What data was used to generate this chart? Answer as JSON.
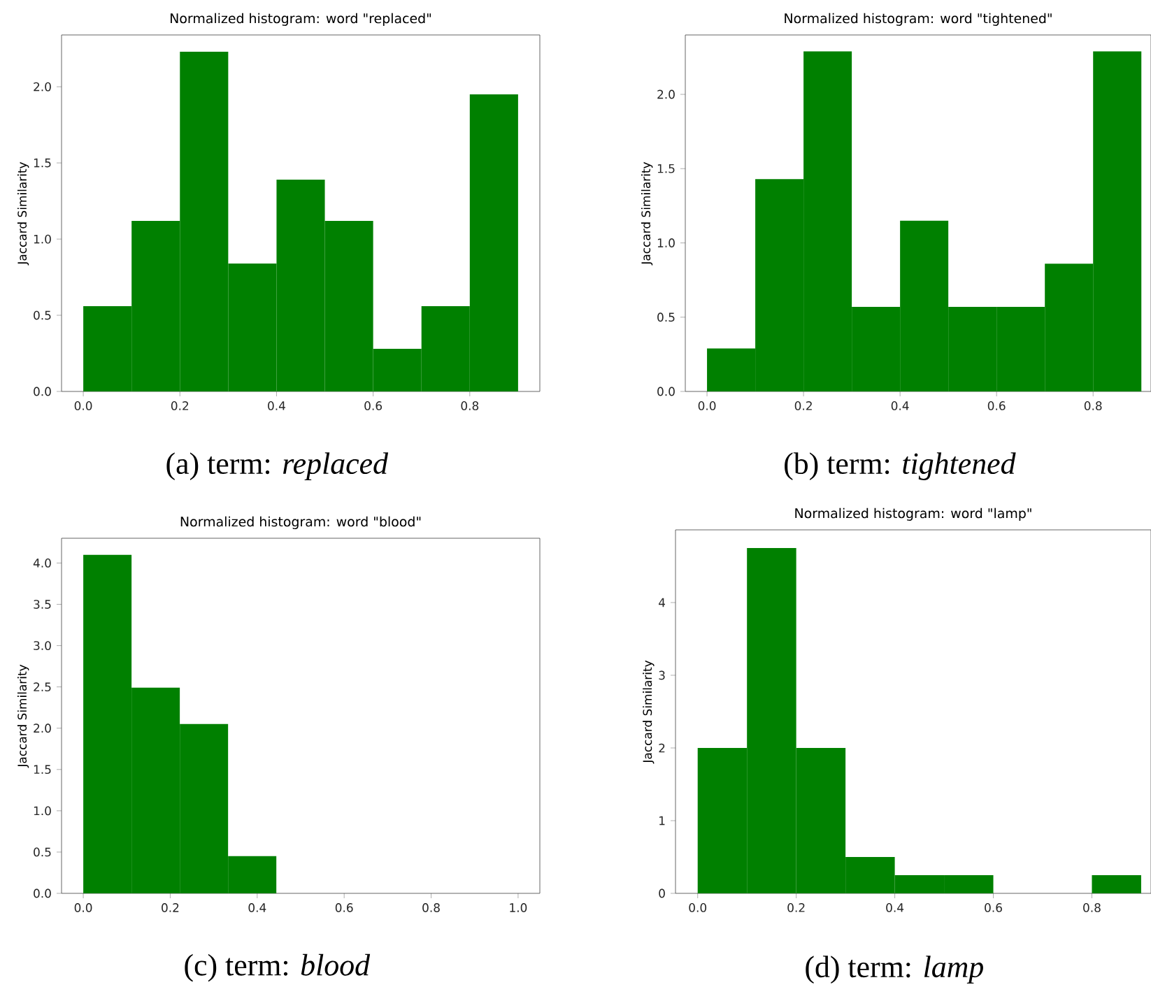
{
  "chart_data": [
    {
      "type": "histogram",
      "title": "Normalized histogram: word \"replaced\"",
      "ylabel": "Jaccard Similarity",
      "color": "#008000",
      "bins": [
        0,
        0.1,
        0.2,
        0.3,
        0.4,
        0.5,
        0.6,
        0.7,
        0.8,
        0.9
      ],
      "values": [
        0.56,
        1.12,
        2.23,
        0.84,
        1.39,
        1.12,
        0.28,
        0.56,
        1.95
      ],
      "xlim": [
        -0.045,
        0.945
      ],
      "ylim": [
        0,
        2.34
      ],
      "xticks": [
        {
          "value": 0,
          "label": "0.0"
        },
        {
          "value": 0.2,
          "label": "0.2"
        },
        {
          "value": 0.4,
          "label": "0.4"
        },
        {
          "value": 0.6,
          "label": "0.6"
        },
        {
          "value": 0.8,
          "label": "0.8"
        }
      ],
      "yticks": [
        {
          "value": 0,
          "label": "0.0"
        },
        {
          "value": 0.5,
          "label": "0.5"
        },
        {
          "value": 1,
          "label": "1.0"
        },
        {
          "value": 1.5,
          "label": "1.5"
        },
        {
          "value": 2,
          "label": "2.0"
        }
      ],
      "annotations": [
        "(a) term: *replaced*"
      ]
    },
    {
      "type": "histogram",
      "title": "Normalized histogram: word \"tightened\"",
      "ylabel": "Jaccard Similarity",
      "color": "#008000",
      "bins": [
        0,
        0.1,
        0.2,
        0.3,
        0.4,
        0.5,
        0.6,
        0.7,
        0.8,
        0.9
      ],
      "values": [
        0.29,
        1.43,
        2.29,
        0.57,
        1.15,
        0.57,
        0.57,
        0.86,
        2.29
      ],
      "xlim": [
        -0.045,
        0.92
      ],
      "ylim": [
        0,
        2.4
      ],
      "xticks": [
        {
          "value": 0,
          "label": "0.0"
        },
        {
          "value": 0.2,
          "label": "0.2"
        },
        {
          "value": 0.4,
          "label": "0.4"
        },
        {
          "value": 0.6,
          "label": "0.6"
        },
        {
          "value": 0.8,
          "label": "0.8"
        }
      ],
      "yticks": [
        {
          "value": 0,
          "label": "0.0"
        },
        {
          "value": 0.5,
          "label": "0.5"
        },
        {
          "value": 1,
          "label": "1.0"
        },
        {
          "value": 1.5,
          "label": "1.5"
        },
        {
          "value": 2,
          "label": "2.0"
        }
      ],
      "annotations": [
        "(b) term: *tightened*"
      ]
    },
    {
      "type": "histogram",
      "title": "Normalized histogram: word \"blood\"",
      "ylabel": "Jaccard Similarity",
      "color": "#008000",
      "bins": [
        0,
        0.111,
        0.222,
        0.333,
        0.444
      ],
      "values": [
        4.1,
        2.49,
        2.05,
        0.45
      ],
      "xlim": [
        -0.05,
        1.05
      ],
      "ylim": [
        0,
        4.3
      ],
      "xticks": [
        {
          "value": 0,
          "label": "0.0"
        },
        {
          "value": 0.2,
          "label": "0.2"
        },
        {
          "value": 0.4,
          "label": "0.4"
        },
        {
          "value": 0.6,
          "label": "0.6"
        },
        {
          "value": 0.8,
          "label": "0.8"
        },
        {
          "value": 1,
          "label": "1.0"
        }
      ],
      "yticks": [
        {
          "value": 0,
          "label": "0.0"
        },
        {
          "value": 0.5,
          "label": "0.5"
        },
        {
          "value": 1,
          "label": "1.0"
        },
        {
          "value": 1.5,
          "label": "1.5"
        },
        {
          "value": 2,
          "label": "2.0"
        },
        {
          "value": 2.5,
          "label": "2.5"
        },
        {
          "value": 3,
          "label": "3.0"
        },
        {
          "value": 3.5,
          "label": "3.5"
        },
        {
          "value": 4,
          "label": "4.0"
        }
      ],
      "annotations": [
        "(c) term: *blood*"
      ]
    },
    {
      "type": "histogram",
      "title": "Normalized histogram: word \"lamp\"",
      "ylabel": "Jaccard Similarity",
      "color": "#008000",
      "bins": [
        0,
        0.1,
        0.2,
        0.3,
        0.4,
        0.5,
        0.6,
        0.7,
        0.8,
        0.9
      ],
      "values": [
        2,
        4.75,
        2,
        0.5,
        0.25,
        0.25,
        0,
        0,
        0.25
      ],
      "xlim": [
        -0.045,
        0.92
      ],
      "ylim": [
        0,
        5.0
      ],
      "xticks": [
        {
          "value": 0,
          "label": "0.0"
        },
        {
          "value": 0.2,
          "label": "0.2"
        },
        {
          "value": 0.4,
          "label": "0.4"
        },
        {
          "value": 0.6,
          "label": "0.6"
        },
        {
          "value": 0.8,
          "label": "0.8"
        }
      ],
      "yticks": [
        0,
        1,
        2,
        3,
        4
      ],
      "annotations": [
        "(d) term: *lamp*"
      ]
    }
  ]
}
